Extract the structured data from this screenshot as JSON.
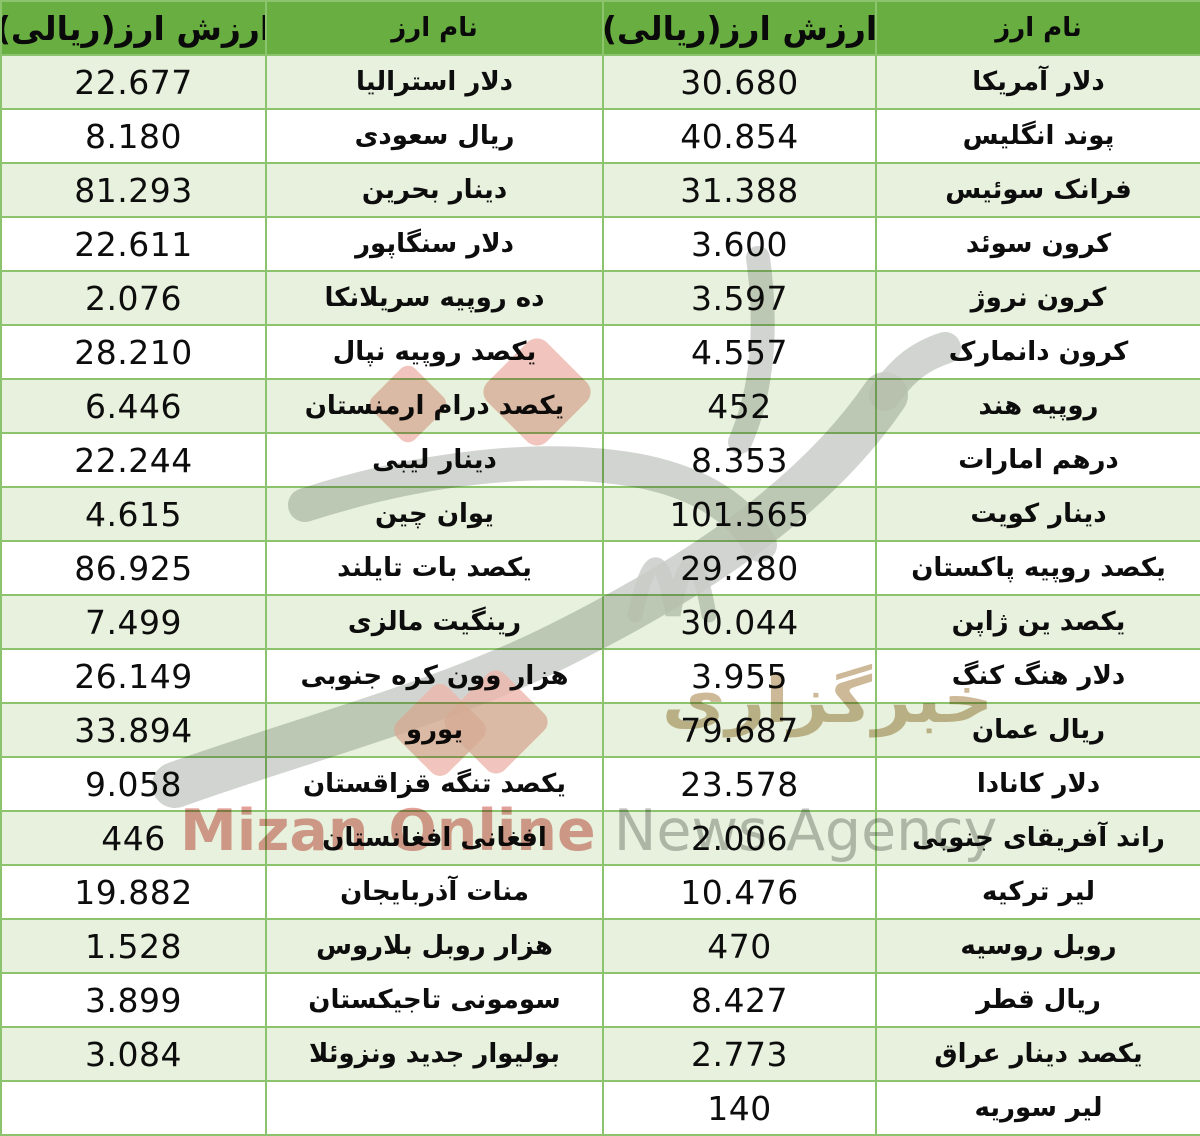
{
  "headers": {
    "value_label": "ارزش ارز(ریالی)",
    "name_label": "نام ارز"
  },
  "watermark": {
    "fa_text": "خبرگزاری",
    "en_bold": "Mizan Online",
    "en_light": "News Agency"
  },
  "colors": {
    "header_bg": "#69AE41",
    "row_alt_bg": "#E7F1DD",
    "row_bg": "#FFFFFF",
    "grid_border": "#8CC46D",
    "text": "#0D0D0D",
    "watermark_pink": "#DC9089",
    "watermark_gray": "#B4B6B4",
    "watermark_tan": "#C8B28D"
  },
  "chart_data": {
    "type": "table",
    "columns_ltr": [
      "ارزش ارز(ریالی)",
      "نام ارز",
      "ارزش ارز(ریالی)",
      "نام ارز"
    ],
    "rows": [
      [
        "22.677",
        "دلار استرالیا",
        "30.680",
        "دلار آمریکا"
      ],
      [
        "8.180",
        "ریال سعودی",
        "40.854",
        "پوند انگلیس"
      ],
      [
        "81.293",
        "دینار بحرین",
        "31.388",
        "فرانک سوئیس"
      ],
      [
        "22.611",
        "دلار سنگاپور",
        "3.600",
        "کرون سوئد"
      ],
      [
        "2.076",
        "ده روپیه سریلانکا",
        "3.597",
        "کرون نروژ"
      ],
      [
        "28.210",
        "یکصد روپیه نپال",
        "4.557",
        "کرون دانمارک"
      ],
      [
        "6.446",
        "یکصد درام ارمنستان",
        "452",
        "روپیه هند"
      ],
      [
        "22.244",
        "دینار لیبی",
        "8.353",
        "درهم امارات"
      ],
      [
        "4.615",
        "یوان چین",
        "101.565",
        "دینار کویت"
      ],
      [
        "86.925",
        "یکصد بات تایلند",
        "29.280",
        "یکصد روپیه پاکستان"
      ],
      [
        "7.499",
        "رینگیت مالزی",
        "30.044",
        "یکصد ین ژاپن"
      ],
      [
        "26.149",
        "هزار وون کره جنوبی",
        "3.955",
        "دلار هنگ کنگ"
      ],
      [
        "33.894",
        "یورو",
        "79.687",
        "ریال عمان"
      ],
      [
        "9.058",
        "یکصد تنگه قزاقستان",
        "23.578",
        "دلار کانادا"
      ],
      [
        "446",
        "افغانی افغانستان",
        "2.006",
        "راند آفریقای جنوبی"
      ],
      [
        "19.882",
        "منات آذربایجان",
        "10.476",
        "لیر ترکیه"
      ],
      [
        "1.528",
        "هزار روبل بلاروس",
        "470",
        "روبل روسیه"
      ],
      [
        "3.899",
        "سومونی تاجیکستان",
        "8.427",
        "ریال قطر"
      ],
      [
        "3.084",
        "بولیوار جدید ونزوئلا",
        "2.773",
        "یکصد دینار عراق"
      ],
      [
        "",
        "",
        "140",
        "لیر سوریه"
      ]
    ],
    "currencies": [
      {
        "name": "دلار آمریکا",
        "value_rial": "30.680"
      },
      {
        "name": "پوند انگلیس",
        "value_rial": "40.854"
      },
      {
        "name": "فرانک سوئیس",
        "value_rial": "31.388"
      },
      {
        "name": "کرون سوئد",
        "value_rial": "3.600"
      },
      {
        "name": "کرون نروژ",
        "value_rial": "3.597"
      },
      {
        "name": "کرون دانمارک",
        "value_rial": "4.557"
      },
      {
        "name": "روپیه هند",
        "value_rial": "452"
      },
      {
        "name": "درهم امارات",
        "value_rial": "8.353"
      },
      {
        "name": "دینار کویت",
        "value_rial": "101.565"
      },
      {
        "name": "یکصد روپیه پاکستان",
        "value_rial": "29.280"
      },
      {
        "name": "یکصد ین ژاپن",
        "value_rial": "30.044"
      },
      {
        "name": "دلار هنگ کنگ",
        "value_rial": "3.955"
      },
      {
        "name": "ریال عمان",
        "value_rial": "79.687"
      },
      {
        "name": "دلار کانادا",
        "value_rial": "23.578"
      },
      {
        "name": "راند آفریقای جنوبی",
        "value_rial": "2.006"
      },
      {
        "name": "لیر ترکیه",
        "value_rial": "10.476"
      },
      {
        "name": "روبل روسیه",
        "value_rial": "470"
      },
      {
        "name": "ریال قطر",
        "value_rial": "8.427"
      },
      {
        "name": "یکصد دینار عراق",
        "value_rial": "2.773"
      },
      {
        "name": "لیر سوریه",
        "value_rial": "140"
      },
      {
        "name": "دلار استرالیا",
        "value_rial": "22.677"
      },
      {
        "name": "ریال سعودی",
        "value_rial": "8.180"
      },
      {
        "name": "دینار بحرین",
        "value_rial": "81.293"
      },
      {
        "name": "دلار سنگاپور",
        "value_rial": "22.611"
      },
      {
        "name": "ده روپیه سریلانکا",
        "value_rial": "2.076"
      },
      {
        "name": "یکصد روپیه نپال",
        "value_rial": "28.210"
      },
      {
        "name": "یکصد درام ارمنستان",
        "value_rial": "6.446"
      },
      {
        "name": "دینار لیبی",
        "value_rial": "22.244"
      },
      {
        "name": "یوان چین",
        "value_rial": "4.615"
      },
      {
        "name": "یکصد بات تایلند",
        "value_rial": "86.925"
      },
      {
        "name": "رینگیت مالزی",
        "value_rial": "7.499"
      },
      {
        "name": "هزار وون کره جنوبی",
        "value_rial": "26.149"
      },
      {
        "name": "یورو",
        "value_rial": "33.894"
      },
      {
        "name": "یکصد تنگه قزاقستان",
        "value_rial": "9.058"
      },
      {
        "name": "افغانی افغانستان",
        "value_rial": "446"
      },
      {
        "name": "منات آذربایجان",
        "value_rial": "19.882"
      },
      {
        "name": "هزار روبل بلاروس",
        "value_rial": "1.528"
      },
      {
        "name": "سومونی تاجیکستان",
        "value_rial": "3.899"
      },
      {
        "name": "بولیوار جدید ونزوئلا",
        "value_rial": "3.084"
      }
    ]
  }
}
